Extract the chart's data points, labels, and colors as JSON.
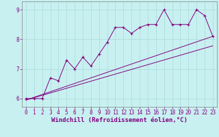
{
  "title": "",
  "xlabel": "Windchill (Refroidissement éolien,°C)",
  "ylabel": "",
  "bg_color": "#c8f0f0",
  "line_color": "#800080",
  "grid_color": "#a8dada",
  "spine_color": "#808080",
  "xlim": [
    -0.5,
    23.5
  ],
  "ylim": [
    5.72,
    9.28
  ],
  "yticks": [
    6,
    7,
    8,
    9
  ],
  "xticks": [
    0,
    1,
    2,
    3,
    4,
    5,
    6,
    7,
    8,
    9,
    10,
    11,
    12,
    13,
    14,
    15,
    16,
    17,
    18,
    19,
    20,
    21,
    22,
    23
  ],
  "data_x": [
    0,
    1,
    2,
    3,
    4,
    5,
    6,
    7,
    8,
    9,
    10,
    11,
    12,
    13,
    14,
    15,
    16,
    17,
    18,
    19,
    20,
    21,
    22,
    23
  ],
  "data_y": [
    6.0,
    6.0,
    6.0,
    6.7,
    6.6,
    7.3,
    7.0,
    7.4,
    7.1,
    7.5,
    7.9,
    8.4,
    8.4,
    8.2,
    8.4,
    8.5,
    8.5,
    9.0,
    8.5,
    8.5,
    8.5,
    9.0,
    8.8,
    8.1
  ],
  "line1_x": [
    0,
    23
  ],
  "line1_y": [
    5.95,
    8.1
  ],
  "line2_x": [
    0,
    23
  ],
  "line2_y": [
    5.95,
    7.78
  ],
  "figsize": [
    3.2,
    2.0
  ],
  "dpi": 100,
  "tick_fontsize": 5.5,
  "label_fontsize": 6.5
}
